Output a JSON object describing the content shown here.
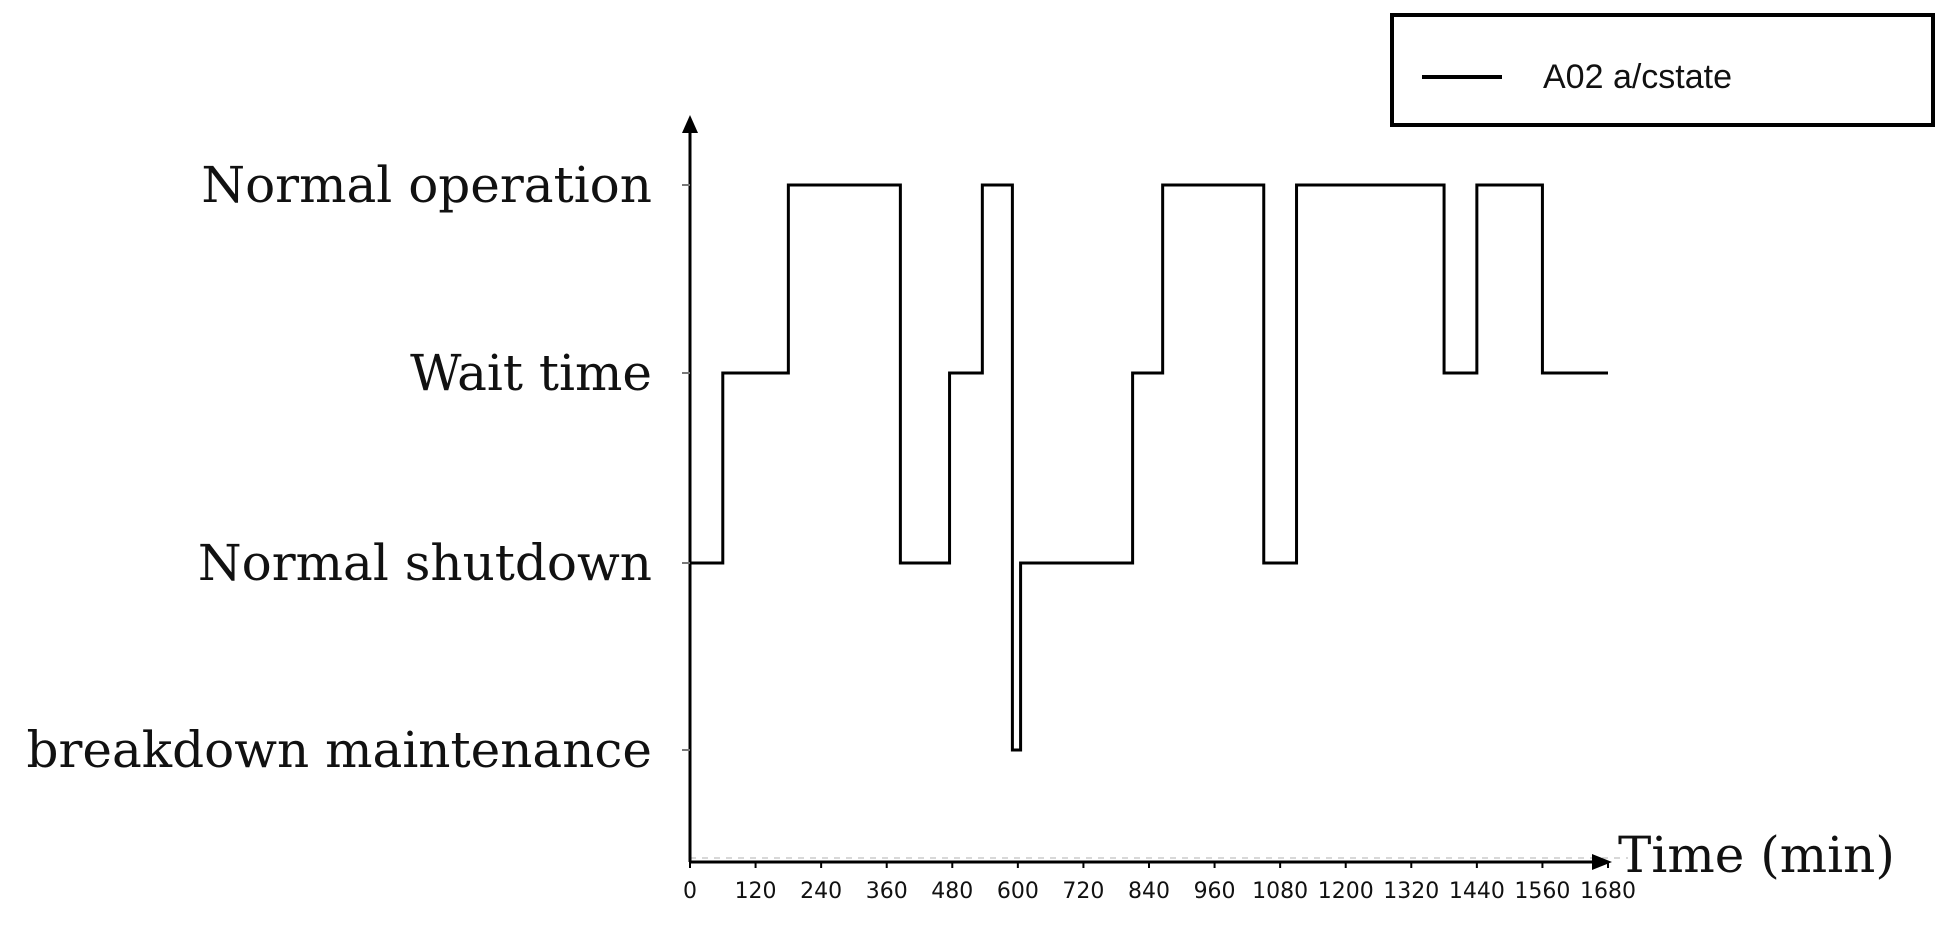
{
  "chart_data": {
    "type": "line",
    "step": true,
    "xlabel": "Time (min)",
    "ylabel": "",
    "xlim": [
      0,
      1680
    ],
    "x_ticks": [
      0,
      120,
      240,
      360,
      480,
      600,
      720,
      840,
      960,
      1080,
      1200,
      1320,
      1440,
      1560,
      1680
    ],
    "x_tick_labels": [
      "0",
      "120",
      "240",
      "360",
      "480",
      "600",
      "720",
      "840",
      "960",
      "1080",
      "1200",
      "1320",
      "1440",
      "1560",
      "1680"
    ],
    "y_categories": [
      "breakdown maintenance",
      "Normal shutdown",
      "Wait time",
      "Normal operation"
    ],
    "legend": {
      "position": "top-right",
      "entries": [
        "A02 a/cstate"
      ]
    },
    "series": [
      {
        "name": "A02 a/cstate",
        "color": "#000000",
        "points": [
          {
            "x": 0,
            "y": "Normal shutdown"
          },
          {
            "x": 60,
            "y": "Wait time"
          },
          {
            "x": 180,
            "y": "Normal operation"
          },
          {
            "x": 385,
            "y": "Normal shutdown"
          },
          {
            "x": 475,
            "y": "Wait time"
          },
          {
            "x": 535,
            "y": "Normal operation"
          },
          {
            "x": 590,
            "y": "breakdown maintenance"
          },
          {
            "x": 605,
            "y": "Normal shutdown"
          },
          {
            "x": 810,
            "y": "Wait time"
          },
          {
            "x": 865,
            "y": "Normal operation"
          },
          {
            "x": 1050,
            "y": "Normal shutdown"
          },
          {
            "x": 1110,
            "y": "Normal operation"
          },
          {
            "x": 1380,
            "y": "Wait time"
          },
          {
            "x": 1440,
            "y": "Normal operation"
          },
          {
            "x": 1560,
            "y": "Wait time"
          },
          {
            "x": 1680,
            "y": "Wait time"
          }
        ]
      }
    ]
  }
}
